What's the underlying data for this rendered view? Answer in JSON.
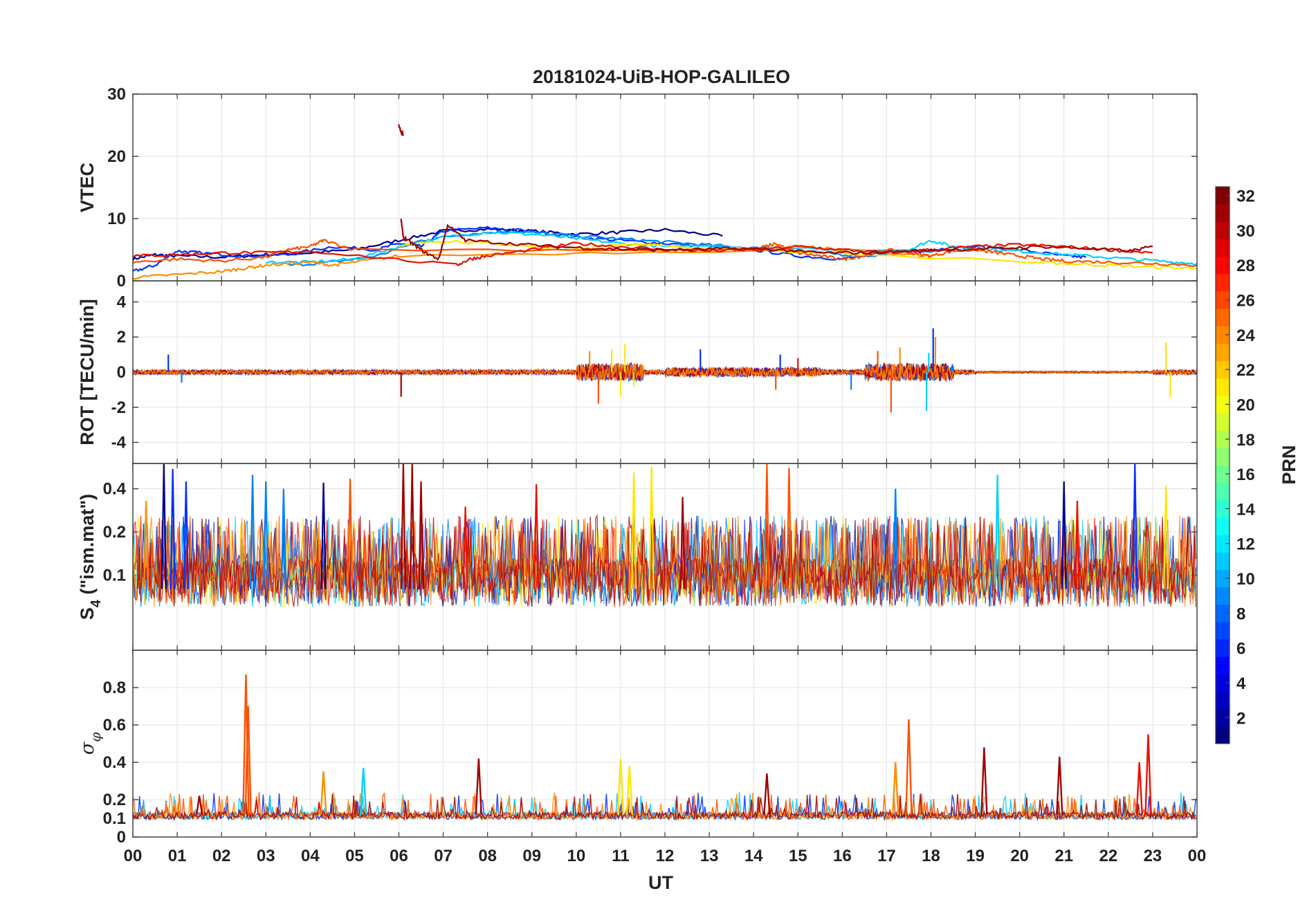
{
  "chart_data": {
    "type": "line",
    "title": "20181024-UiB-HOP-GALILEO",
    "xlabel": "UT",
    "x_tick_labels": [
      "00",
      "01",
      "02",
      "03",
      "04",
      "05",
      "06",
      "07",
      "08",
      "09",
      "10",
      "11",
      "12",
      "13",
      "14",
      "15",
      "16",
      "17",
      "18",
      "19",
      "20",
      "21",
      "22",
      "23",
      "00"
    ],
    "xlim": [
      0,
      24
    ],
    "grid": true,
    "colorbar": {
      "label": "PRN",
      "range": [
        1,
        32
      ],
      "ticks": [
        "2",
        "4",
        "6",
        "8",
        "10",
        "12",
        "14",
        "16",
        "18",
        "20",
        "22",
        "24",
        "26",
        "28",
        "30",
        "32"
      ],
      "colormap": "jet"
    },
    "panels": [
      {
        "ylabel": "VTEC",
        "ylim": [
          0,
          30
        ],
        "yticks": [
          "0",
          "10",
          "20",
          "30"
        ],
        "series": [
          {
            "prn": 2,
            "color": "#00008f",
            "x": [
              0.0,
              0.5,
              1.0,
              2.0,
              3.0,
              4.0,
              5.0,
              6.0,
              7.0,
              8.0,
              9.0,
              10.0,
              11.0,
              12.0,
              13.3
            ],
            "y": [
              3.5,
              4.2,
              4.0,
              3.8,
              4.2,
              4.5,
              5.0,
              6.5,
              8.0,
              8.3,
              8.0,
              7.5,
              7.8,
              8.2,
              7.2
            ]
          },
          {
            "prn": 5,
            "color": "#0030ff",
            "x": [
              0.0,
              0.5,
              1.0,
              1.5,
              2.5,
              3.5,
              4.5,
              5.5,
              6.0,
              6.5,
              7.0,
              8.0,
              9.0,
              10.0,
              11.0,
              12.0,
              13.0,
              14.0,
              15.0,
              16.0,
              17.0,
              18.0,
              19.0,
              20.0,
              21.0,
              21.5
            ],
            "y": [
              1.5,
              2.5,
              4.8,
              4.5,
              4.0,
              4.2,
              5.5,
              5.0,
              6.0,
              5.5,
              8.0,
              8.5,
              8.0,
              7.0,
              6.5,
              6.0,
              5.5,
              5.0,
              4.0,
              3.5,
              4.5,
              5.0,
              5.5,
              5.0,
              4.0,
              3.8
            ]
          },
          {
            "prn": 9,
            "color": "#0080ff",
            "x": [
              3.5,
              4.5,
              5.5,
              6.5,
              7.5,
              8.5,
              9.5,
              10.5,
              11.5,
              12.5,
              13.5,
              14.5,
              15.5,
              16.5,
              17.5,
              18.5
            ],
            "y": [
              2.5,
              3.0,
              4.0,
              6.5,
              7.5,
              8.0,
              7.5,
              7.0,
              6.5,
              6.0,
              5.5,
              5.0,
              4.5,
              4.0,
              4.5,
              5.0
            ]
          },
          {
            "prn": 13,
            "color": "#00d0ff",
            "x": [
              3.0,
              4.0,
              5.0,
              6.0,
              7.0,
              8.0,
              9.0,
              10.0,
              11.0,
              12.0,
              17.5,
              18.0,
              18.5,
              19.5,
              20.5,
              21.5,
              22.5,
              23.5,
              24.0
            ],
            "y": [
              3.0,
              3.0,
              3.5,
              5.5,
              7.0,
              7.8,
              7.5,
              6.8,
              6.0,
              5.5,
              5.0,
              6.5,
              5.5,
              5.0,
              4.5,
              4.0,
              3.5,
              3.0,
              2.8
            ]
          },
          {
            "prn": 20,
            "color": "#ffe600",
            "x": [
              6.0,
              7.0,
              8.0,
              9.0,
              10.0,
              11.0,
              20.3,
              21.0,
              22.0,
              23.0,
              24.0
            ],
            "y": [
              5.5,
              6.5,
              6.0,
              5.5,
              5.0,
              6.0,
              3.0,
              2.8,
              2.5,
              2.2,
              2.0
            ]
          },
          {
            "prn": 24,
            "color": "#ff8c00",
            "x": [
              0.0,
              1.0,
              2.0,
              2.5,
              3.0,
              4.0,
              4.5,
              5.0,
              6.0,
              14.5,
              15.0,
              16.0,
              17.0,
              18.0
            ],
            "y": [
              0.5,
              1.0,
              1.5,
              2.0,
              2.5,
              3.0,
              2.5,
              3.0,
              4.0,
              5.0,
              5.5,
              5.0,
              4.5,
              4.0
            ]
          },
          {
            "prn": 26,
            "color": "#ff5000",
            "x": [
              0.0,
              1.0,
              2.0,
              3.0,
              3.5,
              4.0,
              4.3,
              5.0,
              14.0,
              14.5,
              15.0,
              15.5,
              16.0,
              16.5,
              17.0,
              17.5,
              18.0,
              18.5,
              19.0,
              19.5,
              20.0,
              20.5,
              21.0,
              22.0,
              23.0,
              24.0
            ],
            "y": [
              3.0,
              3.5,
              3.2,
              3.8,
              5.0,
              5.5,
              6.5,
              5.0,
              5.0,
              6.0,
              4.5,
              4.0,
              3.5,
              4.0,
              5.0,
              4.5,
              4.0,
              4.8,
              5.0,
              4.5,
              4.0,
              3.5,
              3.2,
              3.0,
              2.8,
              2.5
            ]
          },
          {
            "prn": 28,
            "color": "#e81000",
            "x": [
              0.0,
              1.0,
              2.0,
              3.0,
              4.0,
              7.3,
              7.6,
              8.0,
              9.0,
              10.0,
              11.0,
              12.0,
              13.0,
              14.0,
              15.0,
              16.0,
              17.0,
              18.0,
              19.0,
              20.0,
              21.0,
              22.0,
              23.0
            ],
            "y": [
              4.0,
              4.2,
              4.5,
              4.5,
              4.8,
              2.5,
              3.5,
              4.0,
              5.0,
              6.0,
              5.5,
              5.0,
              4.8,
              5.0,
              5.5,
              5.0,
              4.5,
              5.0,
              5.5,
              5.8,
              5.5,
              5.0,
              4.5
            ]
          },
          {
            "prn": 31,
            "color": "#a00000",
            "x": [
              6.05,
              6.1,
              6.3,
              6.6,
              6.9,
              7.1,
              7.5,
              8.5,
              9.5,
              10.5,
              11.5,
              12.5,
              13.5,
              14.5,
              15.5,
              16.5,
              17.5,
              18.5,
              19.5,
              20.5,
              21.5,
              22.5,
              23.0
            ],
            "y": [
              9.8,
              7.0,
              6.0,
              4.5,
              3.5,
              9.0,
              6.5,
              6.0,
              5.5,
              5.2,
              5.0,
              5.0,
              5.2,
              5.0,
              4.5,
              4.5,
              4.8,
              5.0,
              5.2,
              5.5,
              5.2,
              4.8,
              5.5
            ]
          },
          {
            "prn": 31,
            "color": "#a00000",
            "x": [
              6.0,
              6.05,
              6.1
            ],
            "y": [
              25.0,
              24.0,
              23.5
            ]
          }
        ]
      },
      {
        "ylabel": "ROT [TECU/min]",
        "ylim": [
          -5.2,
          5.2
        ],
        "yticks": [
          "-4",
          "-2",
          "0",
          "2",
          "4"
        ],
        "spikes": [
          {
            "x": 0.8,
            "y": 1.0,
            "color": "#0030ff"
          },
          {
            "x": 1.1,
            "y": -0.6,
            "color": "#0080ff"
          },
          {
            "x": 6.05,
            "y": -1.4,
            "color": "#a00000"
          },
          {
            "x": 10.3,
            "y": 1.2,
            "color": "#ff8c00"
          },
          {
            "x": 10.5,
            "y": -1.8,
            "color": "#ff5000"
          },
          {
            "x": 10.8,
            "y": 1.3,
            "color": "#ffe600"
          },
          {
            "x": 11.0,
            "y": -1.4,
            "color": "#ffe600"
          },
          {
            "x": 11.1,
            "y": 1.6,
            "color": "#ffe600"
          },
          {
            "x": 11.3,
            "y": -0.8,
            "color": "#ffe600"
          },
          {
            "x": 12.8,
            "y": 1.3,
            "color": "#0030ff"
          },
          {
            "x": 14.5,
            "y": -1.0,
            "color": "#ff5000"
          },
          {
            "x": 14.6,
            "y": 1.0,
            "color": "#0030ff"
          },
          {
            "x": 15.0,
            "y": 0.8,
            "color": "#e81000"
          },
          {
            "x": 16.2,
            "y": -1.0,
            "color": "#0080ff"
          },
          {
            "x": 16.8,
            "y": 1.2,
            "color": "#ff5000"
          },
          {
            "x": 17.1,
            "y": -2.3,
            "color": "#ff5000"
          },
          {
            "x": 17.3,
            "y": 1.4,
            "color": "#ff8c00"
          },
          {
            "x": 17.9,
            "y": -2.2,
            "color": "#00d0ff"
          },
          {
            "x": 17.95,
            "y": 1.1,
            "color": "#00d0ff"
          },
          {
            "x": 18.05,
            "y": 2.5,
            "color": "#0030ff"
          },
          {
            "x": 18.1,
            "y": 2.0,
            "color": "#ff8c00"
          },
          {
            "x": 18.2,
            "y": -0.5,
            "color": "#a00000"
          },
          {
            "x": 23.3,
            "y": 1.7,
            "color": "#ffe600"
          },
          {
            "x": 23.4,
            "y": -1.4,
            "color": "#ffe600"
          }
        ]
      },
      {
        "ylabel": "S4 (\"ism.mat\")",
        "ylabel_main": "S",
        "ylabel_sub": "4",
        "ylabel_rest": " (\"ism.mat\")",
        "ylim": [
          0.03,
          0.6
        ],
        "yscale": "log",
        "yticks": [
          "0.1",
          "0.2",
          "0.4"
        ],
        "baseline": 0.06,
        "peaks": [
          {
            "x": 0.7,
            "y": 0.6,
            "color": "#00008f"
          },
          {
            "x": 0.9,
            "y": 0.55,
            "color": "#0030ff"
          },
          {
            "x": 1.2,
            "y": 0.45,
            "color": "#0030ff"
          },
          {
            "x": 0.3,
            "y": 0.33,
            "color": "#ff8c00"
          },
          {
            "x": 2.7,
            "y": 0.5,
            "color": "#0080ff"
          },
          {
            "x": 3.0,
            "y": 0.45,
            "color": "#0080ff"
          },
          {
            "x": 3.4,
            "y": 0.4,
            "color": "#0080ff"
          },
          {
            "x": 4.3,
            "y": 0.44,
            "color": "#00008f"
          },
          {
            "x": 4.9,
            "y": 0.47,
            "color": "#ff5000"
          },
          {
            "x": 6.1,
            "y": 0.6,
            "color": "#a00000"
          },
          {
            "x": 6.3,
            "y": 0.6,
            "color": "#a00000"
          },
          {
            "x": 6.5,
            "y": 0.45,
            "color": "#a00000"
          },
          {
            "x": 7.5,
            "y": 0.3,
            "color": "#e81000"
          },
          {
            "x": 9.1,
            "y": 0.43,
            "color": "#e81000"
          },
          {
            "x": 11.3,
            "y": 0.52,
            "color": "#ffe600"
          },
          {
            "x": 11.7,
            "y": 0.57,
            "color": "#ffe600"
          },
          {
            "x": 12.4,
            "y": 0.35,
            "color": "#a00000"
          },
          {
            "x": 14.3,
            "y": 0.6,
            "color": "#ff5000"
          },
          {
            "x": 14.8,
            "y": 0.56,
            "color": "#ff5000"
          },
          {
            "x": 17.2,
            "y": 0.4,
            "color": "#0080ff"
          },
          {
            "x": 19.5,
            "y": 0.5,
            "color": "#00d0ff"
          },
          {
            "x": 21.0,
            "y": 0.45,
            "color": "#00008f"
          },
          {
            "x": 21.3,
            "y": 0.33,
            "color": "#e81000"
          },
          {
            "x": 22.6,
            "y": 0.6,
            "color": "#0030ff"
          },
          {
            "x": 23.3,
            "y": 0.42,
            "color": "#ffe600"
          }
        ]
      },
      {
        "ylabel": "σ φ",
        "ylabel_main": "σ",
        "ylabel_sub": "φ",
        "ylim": [
          0,
          1.0
        ],
        "yticks": [
          "0",
          "0.1",
          "0.2",
          "0.4",
          "0.6",
          "0.8"
        ],
        "baseline": 0.11,
        "peaks": [
          {
            "x": 1.5,
            "y": 0.22,
            "color": "#a00000"
          },
          {
            "x": 2.55,
            "y": 0.87,
            "color": "#ff5000"
          },
          {
            "x": 2.6,
            "y": 0.7,
            "color": "#ff5000"
          },
          {
            "x": 4.3,
            "y": 0.35,
            "color": "#ff8c00"
          },
          {
            "x": 5.2,
            "y": 0.37,
            "color": "#00d0ff"
          },
          {
            "x": 7.8,
            "y": 0.42,
            "color": "#a00000"
          },
          {
            "x": 11.0,
            "y": 0.42,
            "color": "#ffe600"
          },
          {
            "x": 11.2,
            "y": 0.38,
            "color": "#ffe600"
          },
          {
            "x": 14.3,
            "y": 0.34,
            "color": "#a00000"
          },
          {
            "x": 17.5,
            "y": 0.63,
            "color": "#ff5000"
          },
          {
            "x": 17.2,
            "y": 0.4,
            "color": "#ff8c00"
          },
          {
            "x": 19.2,
            "y": 0.48,
            "color": "#a00000"
          },
          {
            "x": 20.9,
            "y": 0.43,
            "color": "#a00000"
          },
          {
            "x": 22.9,
            "y": 0.55,
            "color": "#e81000"
          },
          {
            "x": 22.7,
            "y": 0.4,
            "color": "#e81000"
          }
        ]
      }
    ]
  }
}
